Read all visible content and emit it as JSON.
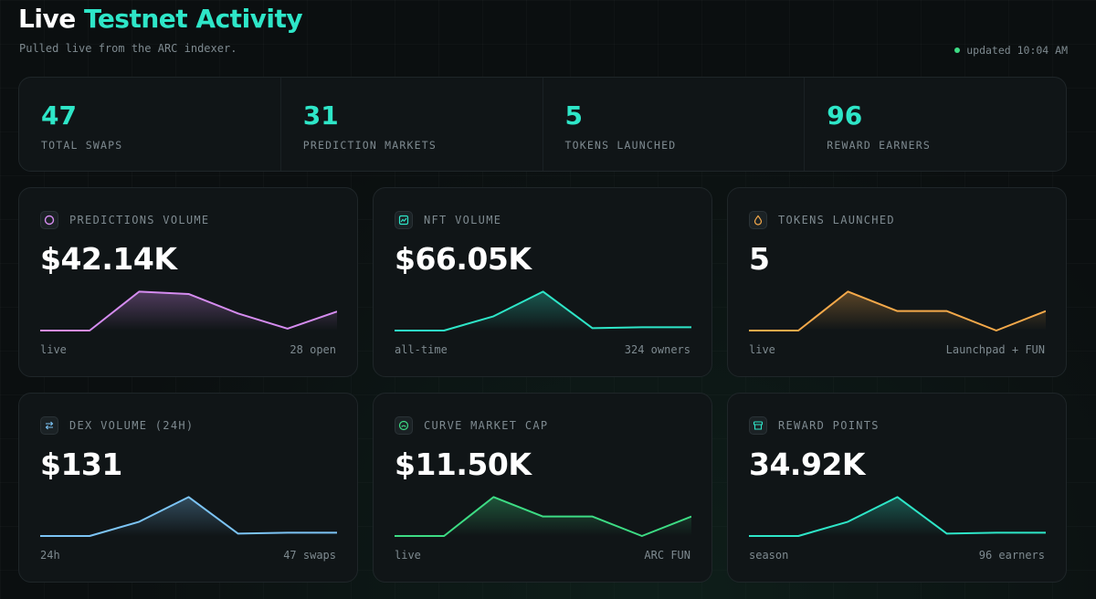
{
  "header": {
    "title_part1": "Live",
    "title_part2": "Testnet Activity",
    "subtitle": "Pulled live from the ARC indexer.",
    "updated": "updated 10:04 AM"
  },
  "stats": [
    {
      "value": "47",
      "label": "TOTAL SWAPS"
    },
    {
      "value": "31",
      "label": "PREDICTION MARKETS"
    },
    {
      "value": "5",
      "label": "TOKENS LAUNCHED"
    },
    {
      "value": "96",
      "label": "REWARD EARNERS"
    }
  ],
  "cards": [
    {
      "label": "PREDICTIONS VOLUME",
      "value": "$42.14K",
      "foot_left": "live",
      "foot_right": "28 open",
      "color": "#d58cf0",
      "icon": "circle-icon",
      "spark": [
        0,
        0,
        0.82,
        0.77,
        0.36,
        0.04,
        0.4
      ]
    },
    {
      "label": "NFT VOLUME",
      "value": "$66.05K",
      "foot_left": "all-time",
      "foot_right": "324 owners",
      "color": "#2ee6c8",
      "icon": "chart-icon",
      "spark": [
        0,
        0,
        0.3,
        0.82,
        0.05,
        0.07,
        0.07
      ]
    },
    {
      "label": "TOKENS LAUNCHED",
      "value": "5",
      "foot_left": "live",
      "foot_right": "Launchpad + FUN",
      "color": "#f5a94a",
      "icon": "drop-icon",
      "spark": [
        0,
        0,
        0.82,
        0.41,
        0.41,
        0.0,
        0.41
      ]
    },
    {
      "label": "DEX VOLUME (24H)",
      "value": "$131",
      "foot_left": "24h",
      "foot_right": "47 swaps",
      "color": "#7cc4f5",
      "icon": "swap-icon",
      "spark": [
        0,
        0,
        0.3,
        0.82,
        0.05,
        0.07,
        0.07
      ]
    },
    {
      "label": "CURVE MARKET CAP",
      "value": "$11.50K",
      "foot_left": "live",
      "foot_right": "ARC FUN",
      "color": "#3ddc84",
      "icon": "gauge-icon",
      "spark": [
        0,
        0,
        0.82,
        0.41,
        0.41,
        0.0,
        0.41
      ]
    },
    {
      "label": "REWARD POINTS",
      "value": "34.92K",
      "foot_left": "season",
      "foot_right": "96 earners",
      "color": "#2ee6c8",
      "icon": "box-icon",
      "spark": [
        0,
        0,
        0.3,
        0.82,
        0.05,
        0.07,
        0.07
      ]
    }
  ]
}
